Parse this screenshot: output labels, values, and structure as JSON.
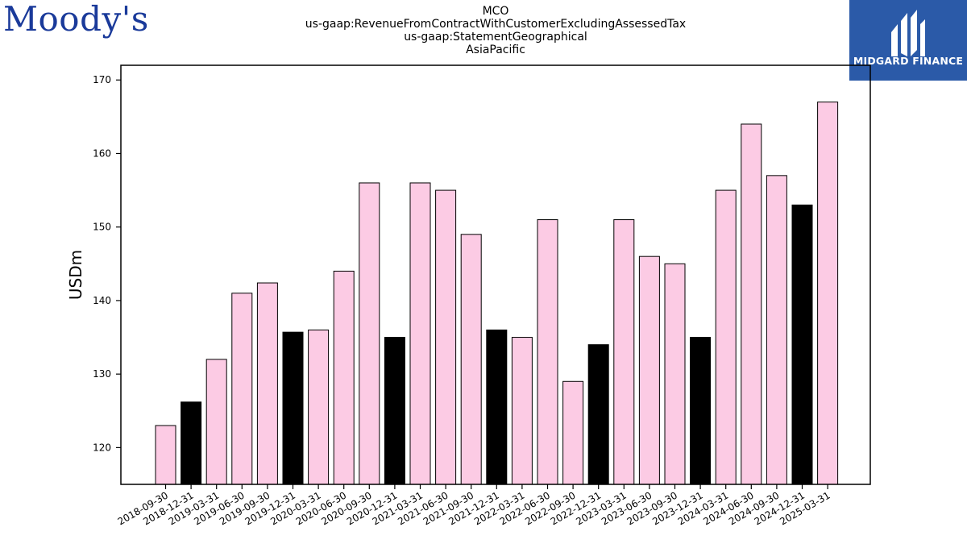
{
  "logos": {
    "left": "Moody's",
    "right": "MIDGARD FINANCE"
  },
  "chart_data": {
    "type": "bar",
    "title_lines": [
      "MCO",
      "us-gaap:RevenueFromContractWithCustomerExcludingAssessedTax",
      "us-gaap:StatementGeographical",
      "AsiaPacific"
    ],
    "xlabel": "",
    "ylabel": "USDm",
    "ylim": [
      115,
      172
    ],
    "yticks": [
      120,
      130,
      140,
      150,
      160,
      170
    ],
    "grid": false,
    "categories": [
      "2018-09-30",
      "2018-12-31",
      "2019-03-31",
      "2019-06-30",
      "2019-09-30",
      "2019-12-31",
      "2020-03-31",
      "2020-06-30",
      "2020-09-30",
      "2020-12-31",
      "2021-03-31",
      "2021-06-30",
      "2021-09-30",
      "2021-12-31",
      "2022-03-31",
      "2022-06-30",
      "2022-09-30",
      "2022-12-31",
      "2023-03-31",
      "2023-06-30",
      "2023-09-30",
      "2023-12-31",
      "2024-03-31",
      "2024-06-30",
      "2024-09-30",
      "2024-12-31",
      "2025-03-31"
    ],
    "values": [
      123,
      126.2,
      132,
      141,
      142.4,
      135.7,
      136,
      144,
      156,
      135,
      156,
      155,
      149,
      136,
      135,
      151,
      129,
      134,
      151,
      146,
      145,
      135,
      155,
      164,
      157,
      153,
      167
    ],
    "colors": {
      "quarter": "#fccbe4",
      "year_end": "#000000",
      "edge": "#000000"
    }
  }
}
